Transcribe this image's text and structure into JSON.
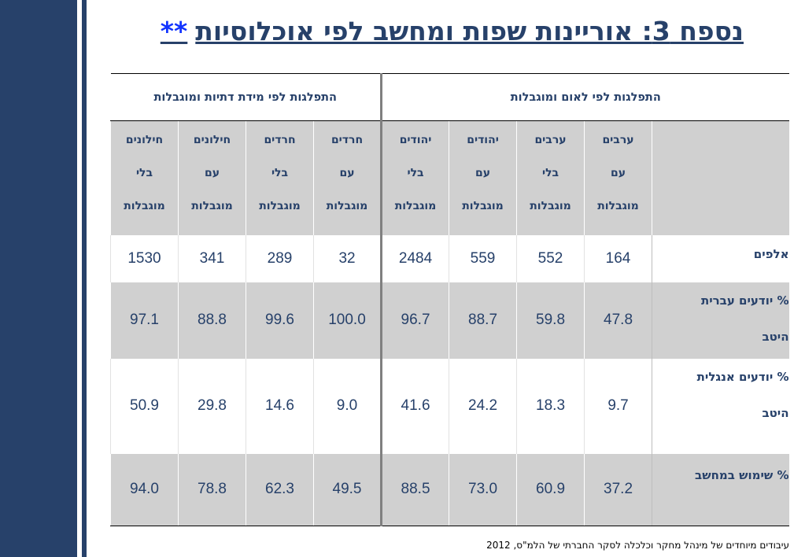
{
  "title": "נספח 3: אוריינות שפות ומחשב לפי אוכלוסיות",
  "title_stars": "**",
  "groups": {
    "nationality": "התפלגות לפי לאום ומוגבלות",
    "religiosity": "התפלגות לפי מידת דתיות ומוגבלות"
  },
  "columns": [
    {
      "l1": "ערבים",
      "l2": "עם",
      "l3": "מוגבלות"
    },
    {
      "l1": "ערבים",
      "l2": "בלי",
      "l3": "מוגבלות"
    },
    {
      "l1": "יהודים",
      "l2": "עם",
      "l3": "מוגבלות"
    },
    {
      "l1": "יהודים",
      "l2": "בלי",
      "l3": "מוגבלות"
    },
    {
      "l1": "חרדים",
      "l2": "עם",
      "l3": "מוגבלות"
    },
    {
      "l1": "חרדים",
      "l2": "בלי",
      "l3": "מוגבלות"
    },
    {
      "l1": "חילונים",
      "l2": "עם",
      "l3": "מוגבלות"
    },
    {
      "l1": "חילונים",
      "l2": "בלי",
      "l3": "מוגבלות"
    }
  ],
  "rows": [
    {
      "label1": "אלפים",
      "label2": "",
      "values": [
        "164",
        "552",
        "559",
        "2484",
        "32",
        "289",
        "341",
        "1530"
      ]
    },
    {
      "label1": "% יודעים עברית",
      "label2": "היטב",
      "values": [
        "47.8",
        "59.8",
        "88.7",
        "96.7",
        "100.0",
        "99.6",
        "88.8",
        "97.1"
      ]
    },
    {
      "label1": "% יודעים אנגלית",
      "label2": "היטב",
      "values": [
        "9.7",
        "18.3",
        "24.2",
        "41.6",
        "9.0",
        "14.6",
        "29.8",
        "50.9"
      ]
    },
    {
      "label1": "% שימוש במחשב",
      "label2": "",
      "values": [
        "37.2",
        "60.9",
        "73.0",
        "88.5",
        "49.5",
        "62.3",
        "78.8",
        "94.0"
      ]
    }
  ],
  "footnote": "עיבודים מיוחדים של מינהל מחקר וכלכלה  לסקר החברתי של הלמ\"ס,  2012",
  "colors": {
    "navy": "#27416a",
    "gray_row": "#d0d0d0",
    "divider": "#808080",
    "stars": "#1133ff"
  }
}
